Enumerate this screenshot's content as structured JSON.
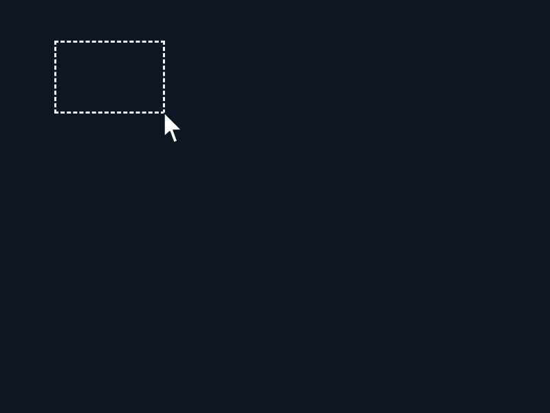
{
  "desktop": {
    "background_color": "#0d1621"
  },
  "selection": {
    "kind": "rubber-band-selection",
    "border_color": "#f2f2f2",
    "border_style": "dashed"
  },
  "cursor": {
    "icon": "mouse-pointer-icon",
    "fill_color": "#ffffff",
    "outline_color": "#0d1621"
  }
}
